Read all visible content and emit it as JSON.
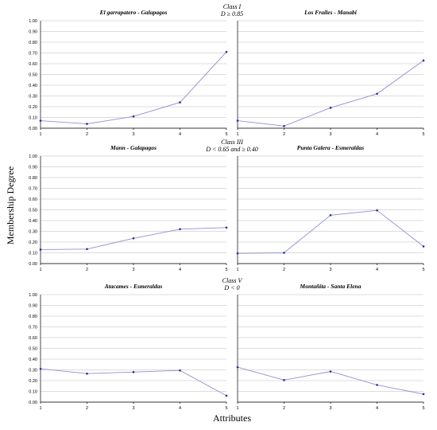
{
  "figure": {
    "ylabel": "Membership Degree",
    "xlabel": "Attributes",
    "groups": [
      {
        "class_label": "Class I",
        "condition": "D ≥ 0.85"
      },
      {
        "class_label": "Class III",
        "condition": "D < 0.65 and ≥ 0.40"
      },
      {
        "class_label": "Class V",
        "condition": "D < 0"
      }
    ]
  },
  "chart_data": [
    {
      "type": "line",
      "title": "El garrapatero - Galapagos",
      "group": 0,
      "x": [
        1,
        2,
        3,
        4,
        5
      ],
      "values": [
        0.07,
        0.04,
        0.11,
        0.24,
        0.71
      ],
      "ylim": [
        0,
        1
      ],
      "yticks": [
        "0.00",
        "0.10",
        "0.20",
        "0.30",
        "0.40",
        "0.50",
        "0.60",
        "0.70",
        "0.80",
        "0.90",
        "1.00"
      ],
      "xticks": [
        "1",
        "2",
        "3",
        "4",
        "5"
      ],
      "grid": true
    },
    {
      "type": "line",
      "title": "Los Frailes - Manabi",
      "group": 0,
      "x": [
        1,
        2,
        3,
        4,
        5
      ],
      "values": [
        0.07,
        0.02,
        0.19,
        0.32,
        0.63
      ],
      "ylim": [
        0,
        1
      ],
      "yticks": [],
      "xticks": [
        "1",
        "2",
        "3",
        "4",
        "5"
      ],
      "grid": true
    },
    {
      "type": "line",
      "title": "Mann - Galapagos",
      "group": 1,
      "x": [
        1,
        2,
        3,
        4,
        5
      ],
      "values": [
        0.13,
        0.135,
        0.235,
        0.32,
        0.335
      ],
      "ylim": [
        0,
        1
      ],
      "yticks": [
        "0.00",
        "0.10",
        "0.20",
        "0.30",
        "0.40",
        "0.50",
        "0.60",
        "0.70",
        "0.80",
        "0.90",
        "1.00"
      ],
      "xticks": [
        "1",
        "2",
        "3",
        "4",
        "5"
      ],
      "grid": true
    },
    {
      "type": "line",
      "title": "Punta Galera - Esmeraldas",
      "group": 1,
      "x": [
        1,
        2,
        3,
        4,
        5
      ],
      "values": [
        0.095,
        0.1,
        0.45,
        0.495,
        0.16
      ],
      "ylim": [
        0,
        1
      ],
      "yticks": [],
      "xticks": [
        "1",
        "2",
        "3",
        "4",
        "5"
      ],
      "grid": true
    },
    {
      "type": "line",
      "title": "Atacames - Esmeraldas",
      "group": 2,
      "x": [
        1,
        2,
        3,
        4,
        5
      ],
      "values": [
        0.31,
        0.265,
        0.28,
        0.295,
        0.06
      ],
      "ylim": [
        0,
        1
      ],
      "yticks": [
        "0.00",
        "0.10",
        "0.20",
        "0.30",
        "0.40",
        "0.50",
        "0.60",
        "0.70",
        "0.80",
        "0.90",
        "1.00"
      ],
      "xticks": [
        "1",
        "2",
        "3",
        "4",
        "5"
      ],
      "grid": true
    },
    {
      "type": "line",
      "title": "Montañita - Santa Elena",
      "group": 2,
      "x": [
        1,
        2,
        3,
        4,
        5
      ],
      "values": [
        0.325,
        0.205,
        0.285,
        0.16,
        0.075
      ],
      "ylim": [
        0,
        1
      ],
      "yticks": [],
      "xticks": [
        "1",
        "2",
        "3",
        "4",
        "5"
      ],
      "grid": true
    }
  ]
}
